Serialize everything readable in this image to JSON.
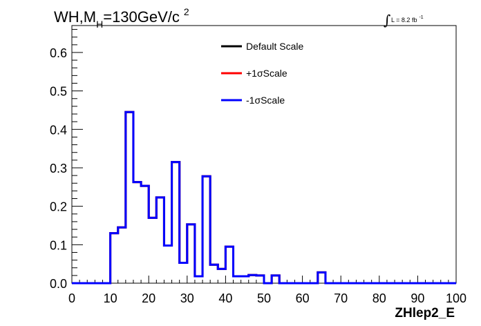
{
  "chart_data": {
    "type": "histogram",
    "title_prefix": "WH,M",
    "title_sub": "H",
    "title_suffix": "=130GeV/c",
    "title_sup": "2",
    "lumi_text": "L = 8.2 fb",
    "lumi_sup": "-1",
    "xlabel": "ZHlep2_E",
    "xlim": [
      0,
      100
    ],
    "ylim": [
      0,
      0.67
    ],
    "xticks": [
      0,
      10,
      20,
      30,
      40,
      50,
      60,
      70,
      80,
      90,
      100
    ],
    "xtick_labels": [
      "0",
      "10",
      "20",
      "30",
      "40",
      "50",
      "60",
      "70",
      "80",
      "90",
      "100"
    ],
    "yticks": [
      0,
      0.1,
      0.2,
      0.3,
      0.4,
      0.5,
      0.6
    ],
    "ytick_labels": [
      "0.0",
      "0.1",
      "0.2",
      "0.3",
      "0.4",
      "0.5",
      "0.6"
    ],
    "bin_width": 2,
    "bins_x_start": [
      0,
      2,
      4,
      6,
      8,
      10,
      12,
      14,
      16,
      18,
      20,
      22,
      24,
      26,
      28,
      30,
      32,
      34,
      36,
      38,
      40,
      42,
      44,
      46,
      48,
      50,
      52,
      54,
      56,
      58,
      60,
      62,
      64,
      66,
      68,
      70,
      72,
      74,
      76,
      78,
      80,
      82,
      84,
      86,
      88,
      90,
      92,
      94,
      96,
      98
    ],
    "series": [
      {
        "name": "Default Scale",
        "color": "#000000",
        "values": [
          0,
          0,
          0,
          0,
          0,
          0.13,
          0.145,
          0.445,
          0.263,
          0.253,
          0.17,
          0.223,
          0.098,
          0.315,
          0.053,
          0.153,
          0.018,
          0.278,
          0.048,
          0.037,
          0.095,
          0.018,
          0.018,
          0.021,
          0.02,
          0,
          0.02,
          0,
          0,
          0,
          0,
          0,
          0.028,
          0,
          0,
          0,
          0,
          0,
          0,
          0,
          0,
          0,
          0,
          0,
          0,
          0,
          0,
          0,
          0,
          0
        ]
      },
      {
        "name": "+1σScale",
        "color": "#ff0000",
        "values": [
          0,
          0,
          0,
          0,
          0,
          0.13,
          0.145,
          0.445,
          0.263,
          0.253,
          0.17,
          0.223,
          0.098,
          0.315,
          0.053,
          0.153,
          0.018,
          0.278,
          0.048,
          0.037,
          0.095,
          0.018,
          0.018,
          0.021,
          0.02,
          0,
          0.02,
          0,
          0,
          0,
          0,
          0,
          0.028,
          0,
          0,
          0,
          0,
          0,
          0,
          0,
          0,
          0,
          0,
          0,
          0,
          0,
          0,
          0,
          0,
          0
        ]
      },
      {
        "name": "-1σScale",
        "color": "#0000ff",
        "values": [
          0,
          0,
          0,
          0,
          0,
          0.13,
          0.145,
          0.445,
          0.263,
          0.253,
          0.17,
          0.223,
          0.098,
          0.315,
          0.053,
          0.153,
          0.018,
          0.278,
          0.048,
          0.037,
          0.095,
          0.018,
          0.018,
          0.021,
          0.02,
          0,
          0.02,
          0,
          0,
          0,
          0,
          0,
          0.028,
          0,
          0,
          0,
          0,
          0,
          0,
          0,
          0,
          0,
          0,
          0,
          0,
          0,
          0,
          0,
          0,
          0
        ]
      }
    ],
    "legend_position": "top-center",
    "grid": false
  }
}
